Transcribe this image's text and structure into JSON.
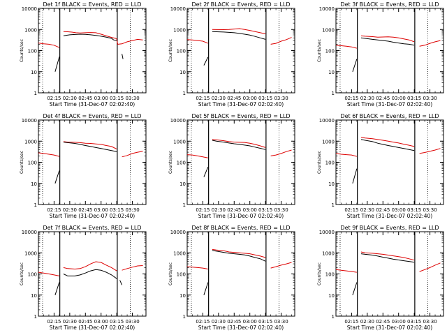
{
  "chart_data": {
    "type": "line",
    "y_scale": "log",
    "ylim": [
      1,
      10000
    ],
    "y_ticks": [
      "1",
      "10",
      "100",
      "1000",
      "10000"
    ],
    "x_tick_labels": [
      "02:15",
      "02:30",
      "02:45",
      "03:00",
      "03:15",
      "03:30"
    ],
    "x_tick_minutes": [
      15,
      30,
      45,
      60,
      75,
      90
    ],
    "xlim_minutes": [
      0,
      103
    ],
    "xlabel": "Start Time (31-Dec-07 02:02:40)",
    "ylabel": "Counts/sec",
    "series_colors": {
      "events": "#000000",
      "lld": "#dd0000"
    },
    "panels": [
      {
        "title": "Det 1f BLACK = Events, RED = LLD",
        "events": {
          "t": [
            4,
            10,
            16,
            20,
            20.5,
            22,
            24,
            26,
            30,
            35,
            40,
            45,
            50,
            55,
            60,
            65,
            70,
            72,
            75,
            76,
            77,
            80,
            81
          ],
          "v": [
            null,
            null,
            10,
            50,
            50,
            null,
            500,
            520,
            560,
            580,
            600,
            590,
            560,
            520,
            480,
            430,
            380,
            320,
            300,
            null,
            null,
            70,
            40
          ]
        },
        "lld": {
          "t": [
            0,
            5,
            10,
            15,
            20,
            20.5,
            22,
            24,
            28,
            32,
            36,
            40,
            45,
            50,
            55,
            60,
            65,
            70,
            74,
            75,
            76,
            80,
            85,
            90,
            95,
            100
          ],
          "v": [
            230,
            210,
            200,
            180,
            140,
            null,
            null,
            800,
            780,
            750,
            700,
            680,
            700,
            720,
            700,
            600,
            500,
            420,
            380,
            350,
            200,
            210,
            260,
            300,
            340,
            320
          ]
        }
      },
      {
        "title": "Det 2f BLACK = Events, RED = LLD",
        "events": {
          "t": [
            16,
            20,
            20.5,
            22,
            24,
            28,
            35,
            40,
            45,
            50,
            55,
            60,
            65,
            70,
            75
          ],
          "v": [
            20,
            50,
            null,
            null,
            800,
            780,
            760,
            730,
            700,
            650,
            600,
            540,
            470,
            400,
            340
          ]
        },
        "lld": {
          "t": [
            0,
            5,
            10,
            15,
            20,
            20.5,
            22,
            24,
            28,
            35,
            40,
            45,
            50,
            55,
            60,
            65,
            70,
            75,
            76,
            80,
            85,
            90,
            95,
            100
          ],
          "v": [
            330,
            320,
            300,
            280,
            220,
            null,
            null,
            1000,
            990,
            980,
            1000,
            1050,
            1100,
            1000,
            900,
            800,
            700,
            620,
            null,
            200,
            220,
            280,
            330,
            420
          ]
        }
      },
      {
        "title": "Det 3f BLACK = Events, RED = LLD",
        "events": {
          "t": [
            16,
            20,
            20.5,
            22,
            24,
            28,
            35,
            40,
            45,
            50,
            55,
            60,
            65,
            70,
            75,
            76,
            80
          ],
          "v": [
            10,
            40,
            null,
            null,
            400,
            380,
            340,
            320,
            300,
            280,
            250,
            230,
            210,
            200,
            180,
            null,
            50
          ]
        },
        "lld": {
          "t": [
            0,
            5,
            10,
            15,
            20,
            20.5,
            22,
            24,
            28,
            35,
            40,
            45,
            50,
            55,
            60,
            65,
            70,
            75,
            76,
            80,
            85,
            90,
            95,
            100
          ],
          "v": [
            180,
            170,
            160,
            150,
            130,
            null,
            null,
            500,
            480,
            460,
            430,
            440,
            450,
            430,
            400,
            360,
            320,
            260,
            null,
            160,
            180,
            220,
            260,
            300
          ]
        }
      },
      {
        "title": "Det 4f BLACK = Events, RED = LLD",
        "events": {
          "t": [
            16,
            20,
            20.5,
            22,
            24,
            28,
            35,
            40,
            45,
            50,
            55,
            60,
            65,
            70,
            75,
            76,
            80
          ],
          "v": [
            10,
            40,
            null,
            null,
            900,
            850,
            780,
            700,
            620,
            560,
            500,
            450,
            400,
            360,
            320,
            null,
            40
          ]
        },
        "lld": {
          "t": [
            0,
            5,
            10,
            15,
            20,
            20.5,
            22,
            24,
            28,
            35,
            40,
            45,
            50,
            55,
            60,
            65,
            70,
            75,
            76,
            80,
            85,
            90,
            95,
            100
          ],
          "v": [
            280,
            260,
            240,
            220,
            190,
            null,
            null,
            950,
            900,
            880,
            850,
            800,
            780,
            740,
            700,
            620,
            560,
            420,
            null,
            180,
            210,
            260,
            300,
            330
          ]
        }
      },
      {
        "title": "Det 5f BLACK = Events, RED = LLD",
        "events": {
          "t": [
            16,
            20,
            20.5,
            22,
            24,
            28,
            35,
            40,
            45,
            50,
            55,
            60,
            65,
            70,
            75,
            76,
            80
          ],
          "v": [
            20,
            60,
            null,
            null,
            1100,
            1000,
            900,
            820,
            750,
            700,
            650,
            600,
            520,
            460,
            400,
            null,
            60
          ]
        },
        "lld": {
          "t": [
            0,
            5,
            10,
            15,
            20,
            20.5,
            22,
            24,
            28,
            35,
            40,
            45,
            50,
            55,
            60,
            65,
            70,
            75,
            76,
            80,
            85,
            90,
            95,
            100
          ],
          "v": [
            230,
            220,
            200,
            180,
            160,
            null,
            null,
            1200,
            1150,
            1050,
            950,
            900,
            880,
            870,
            800,
            700,
            600,
            500,
            null,
            200,
            220,
            260,
            320,
            380
          ]
        }
      },
      {
        "title": "Det 6f BLACK = Events, RED = LLD",
        "events": {
          "t": [
            16,
            20,
            20.5,
            22,
            24,
            28,
            35,
            40,
            45,
            50,
            55,
            60,
            65,
            70,
            75,
            76,
            80
          ],
          "v": [
            10,
            50,
            null,
            null,
            1200,
            1100,
            950,
            800,
            700,
            620,
            560,
            500,
            450,
            400,
            360,
            null,
            60
          ]
        },
        "lld": {
          "t": [
            0,
            5,
            10,
            15,
            20,
            20.5,
            22,
            24,
            28,
            35,
            40,
            45,
            50,
            55,
            60,
            65,
            70,
            75,
            76,
            80,
            85,
            90,
            95,
            100
          ],
          "v": [
            260,
            240,
            230,
            220,
            190,
            null,
            null,
            1500,
            1400,
            1300,
            1200,
            1100,
            1000,
            900,
            820,
            720,
            640,
            560,
            null,
            260,
            290,
            330,
            380,
            450
          ]
        }
      },
      {
        "title": "Det 7f BLACK = Events, RED = LLD",
        "events": {
          "t": [
            4,
            8,
            10,
            16,
            20,
            20.5,
            22,
            24,
            28,
            35,
            40,
            45,
            50,
            55,
            60,
            65,
            70,
            75,
            76,
            78,
            80
          ],
          "v": [
            null,
            null,
            null,
            10,
            40,
            null,
            null,
            100,
            80,
            80,
            90,
            110,
            140,
            160,
            150,
            120,
            90,
            60,
            null,
            50,
            30
          ]
        },
        "lld": {
          "t": [
            0,
            5,
            10,
            15,
            20,
            20.5,
            22,
            24,
            28,
            35,
            40,
            45,
            50,
            55,
            60,
            65,
            70,
            75,
            76,
            80,
            85,
            90,
            95,
            100
          ],
          "v": [
            120,
            110,
            100,
            90,
            80,
            null,
            null,
            200,
            180,
            170,
            180,
            220,
            300,
            380,
            350,
            260,
            200,
            140,
            null,
            150,
            180,
            210,
            240,
            250
          ]
        }
      },
      {
        "title": "Det 8f BLACK = Events, RED = LLD",
        "events": {
          "t": [
            16,
            20,
            20.5,
            22,
            24,
            28,
            35,
            40,
            45,
            50,
            55,
            60,
            65,
            70,
            75,
            76,
            80
          ],
          "v": [
            10,
            40,
            null,
            null,
            1300,
            1200,
            1050,
            950,
            900,
            850,
            800,
            700,
            600,
            520,
            400,
            null,
            60
          ]
        },
        "lld": {
          "t": [
            0,
            5,
            10,
            15,
            20,
            20.5,
            22,
            24,
            28,
            35,
            40,
            45,
            50,
            55,
            60,
            65,
            70,
            75,
            76,
            80,
            85,
            90,
            95,
            100
          ],
          "v": [
            220,
            210,
            200,
            190,
            170,
            null,
            null,
            1450,
            1350,
            1250,
            1100,
            1050,
            1000,
            950,
            900,
            800,
            700,
            600,
            null,
            190,
            220,
            260,
            300,
            350
          ]
        }
      },
      {
        "title": "Det 9f BLACK = Events, RED = LLD",
        "events": {
          "t": [
            16,
            20,
            20.5,
            22,
            24,
            28,
            35,
            40,
            45,
            50,
            55,
            60,
            65,
            70,
            75,
            76,
            80
          ],
          "v": [
            10,
            40,
            null,
            null,
            900,
            850,
            780,
            700,
            620,
            560,
            500,
            460,
            420,
            390,
            360,
            null,
            40
          ]
        },
        "lld": {
          "t": [
            0,
            5,
            10,
            15,
            20,
            20.5,
            22,
            24,
            28,
            35,
            40,
            45,
            50,
            55,
            60,
            65,
            70,
            75,
            76,
            80,
            85,
            90,
            95,
            100
          ],
          "v": [
            160,
            150,
            140,
            130,
            120,
            null,
            null,
            1100,
            1000,
            950,
            900,
            850,
            780,
            720,
            660,
            600,
            520,
            450,
            null,
            130,
            160,
            200,
            260,
            330
          ]
        }
      }
    ]
  }
}
